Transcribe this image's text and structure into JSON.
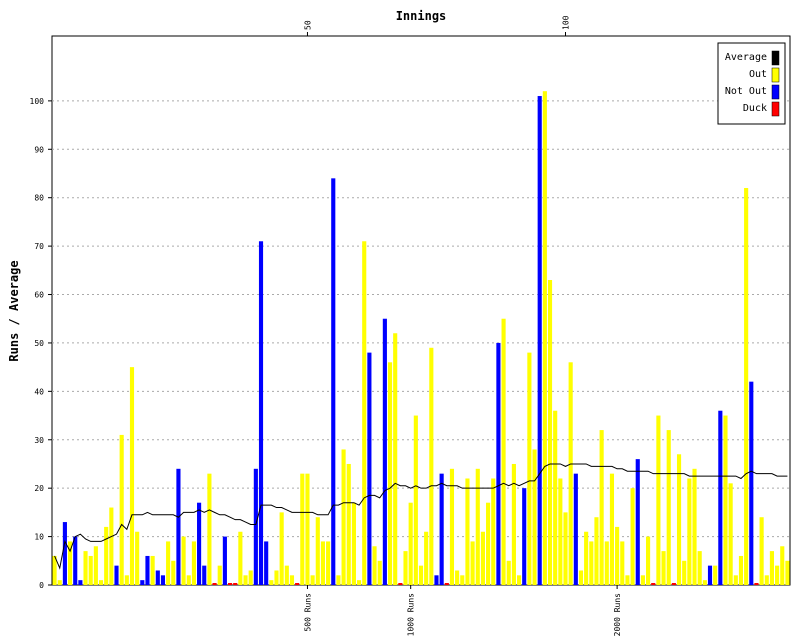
{
  "chart_data": {
    "type": "bar",
    "x_label": "Innings",
    "y_label": "Runs / Average",
    "x": [
      1,
      2,
      3,
      4,
      5,
      6,
      7,
      8,
      9,
      10,
      11,
      12,
      13,
      14,
      15,
      16,
      17,
      18,
      19,
      20,
      21,
      22,
      23,
      24,
      25,
      26,
      27,
      28,
      29,
      30,
      31,
      32,
      33,
      34,
      35,
      36,
      37,
      38,
      39,
      40,
      41,
      42,
      43,
      44,
      45,
      46,
      47,
      48,
      49,
      50,
      51,
      52,
      53,
      54,
      55,
      56,
      57,
      58,
      59,
      60,
      61,
      62,
      63,
      64,
      65,
      66,
      67,
      68,
      69,
      70,
      71,
      72,
      73,
      74,
      75,
      76,
      77,
      78,
      79,
      80,
      81,
      82,
      83,
      84,
      85,
      86,
      87,
      88,
      89,
      90,
      91,
      92,
      93,
      94,
      95,
      96,
      97,
      98,
      99,
      100,
      101,
      102,
      103,
      104,
      105,
      106,
      107,
      108,
      109,
      110,
      111,
      112,
      113,
      114,
      115,
      116,
      117,
      118,
      119,
      120,
      121,
      122,
      123,
      124,
      125,
      126,
      127,
      128,
      129,
      130,
      131,
      132,
      133,
      134,
      135,
      136,
      137,
      138,
      139,
      140,
      141,
      142,
      143
    ],
    "xlim": [
      0.5,
      143.5
    ],
    "xticks": [
      50,
      100
    ],
    "x2ticks": [
      {
        "value": 50,
        "label": "500 Runs"
      },
      {
        "value": 70,
        "label": "1000 Runs"
      },
      {
        "value": 110,
        "label": "2000 Runs"
      }
    ],
    "ylim": [
      0,
      113.4
    ],
    "yticks": [
      0,
      10,
      20,
      30,
      40,
      50,
      60,
      70,
      80,
      90,
      100
    ],
    "grid": true,
    "legend": "top-right",
    "series": [
      {
        "name": "Average",
        "color": "#000000",
        "type": "line",
        "values": [
          6,
          3.5,
          9,
          7,
          10,
          10.5,
          9.5,
          9,
          9,
          9,
          9.5,
          10,
          10.5,
          12.5,
          11.5,
          14.5,
          14.5,
          14.5,
          15,
          14.5,
          14.5,
          14.5,
          14.5,
          14.5,
          14,
          15,
          15,
          15,
          15.5,
          15,
          15.5,
          15,
          14.5,
          14.5,
          14,
          13.5,
          13.5,
          13,
          12.5,
          12.5,
          16.5,
          16.5,
          16.5,
          16,
          16,
          15.5,
          15,
          15,
          15,
          15,
          15,
          14.5,
          14.5,
          14.5,
          16.5,
          16.5,
          17,
          17,
          17,
          16.5,
          18,
          18.5,
          18.5,
          18,
          19.5,
          20,
          21,
          20.5,
          20.5,
          20,
          20.5,
          20,
          20,
          20.5,
          20.5,
          21,
          20.5,
          20.5,
          20.5,
          20,
          20,
          20,
          20,
          20,
          20,
          20,
          20.5,
          21,
          20.5,
          21,
          20.5,
          21,
          21.5,
          21.5,
          23,
          24.5,
          25,
          25,
          25,
          24.5,
          25,
          25,
          25,
          25,
          24.5,
          24.5,
          24.5,
          24.5,
          24.5,
          24,
          24,
          23.5,
          23.5,
          23.5,
          23.5,
          23.5,
          23,
          23,
          23,
          23,
          23,
          23,
          23,
          22.5,
          22.5,
          22.5,
          22.5,
          22.5,
          22.5,
          22.5,
          22.5,
          22.5,
          22.5,
          22,
          23,
          23.5,
          23,
          23,
          23,
          23,
          22.5,
          22.5,
          22.5
        ]
      },
      {
        "name": "Out",
        "color": "#ffff00",
        "values": [
          6,
          1,
          null,
          9,
          null,
          null,
          7,
          6,
          8,
          1,
          12,
          16,
          null,
          31,
          2,
          45,
          11,
          null,
          null,
          6,
          null,
          null,
          9,
          5,
          null,
          10,
          2,
          9,
          null,
          null,
          23,
          null,
          4,
          null,
          null,
          null,
          11,
          2,
          3,
          null,
          null,
          null,
          1,
          3,
          15,
          4,
          2,
          null,
          23,
          23,
          2,
          14,
          9,
          9,
          null,
          2,
          28,
          25,
          17,
          1,
          71,
          null,
          8,
          5,
          null,
          46,
          52,
          null,
          7,
          17,
          35,
          4,
          11,
          49,
          null,
          null,
          null,
          24,
          3,
          2,
          22,
          9,
          24,
          11,
          17,
          22,
          null,
          55,
          5,
          25,
          2,
          null,
          48,
          28,
          null,
          102,
          63,
          36,
          22,
          15,
          46,
          null,
          3,
          11,
          9,
          14,
          32,
          9,
          23,
          12,
          9,
          2,
          20,
          null,
          2,
          10,
          null,
          35,
          7,
          32,
          null,
          27,
          5,
          22,
          24,
          7,
          1,
          null,
          4,
          null,
          35,
          21,
          2,
          6,
          82,
          null,
          null,
          14,
          2,
          7,
          4,
          8,
          5
        ]
      },
      {
        "name": "Not Out",
        "color": "#0000ff",
        "values": [
          null,
          null,
          13,
          null,
          10,
          1,
          null,
          null,
          null,
          null,
          null,
          null,
          4,
          null,
          null,
          null,
          null,
          1,
          6,
          null,
          3,
          2,
          null,
          null,
          24,
          null,
          null,
          null,
          17,
          4,
          null,
          null,
          null,
          10,
          null,
          null,
          null,
          null,
          null,
          24,
          71,
          9,
          null,
          null,
          null,
          null,
          null,
          null,
          null,
          null,
          null,
          null,
          null,
          null,
          84,
          null,
          null,
          null,
          null,
          null,
          null,
          48,
          null,
          null,
          55,
          null,
          null,
          null,
          null,
          null,
          null,
          null,
          null,
          null,
          2,
          23,
          null,
          null,
          null,
          null,
          null,
          null,
          null,
          null,
          null,
          null,
          50,
          null,
          null,
          null,
          null,
          20,
          null,
          null,
          101,
          null,
          null,
          null,
          null,
          null,
          null,
          23,
          null,
          null,
          null,
          null,
          null,
          null,
          null,
          null,
          null,
          null,
          null,
          26,
          null,
          null,
          null,
          null,
          null,
          null,
          null,
          null,
          null,
          null,
          null,
          null,
          null,
          4,
          null,
          36,
          null,
          null,
          null,
          null,
          null,
          42,
          null,
          null,
          null,
          null,
          null,
          null,
          null
        ]
      },
      {
        "name": "Duck",
        "color": "#ff0000",
        "values": [
          null,
          null,
          null,
          null,
          null,
          null,
          null,
          null,
          null,
          null,
          null,
          null,
          null,
          null,
          null,
          null,
          null,
          null,
          null,
          null,
          null,
          null,
          null,
          null,
          null,
          null,
          null,
          null,
          null,
          null,
          null,
          0,
          null,
          null,
          0,
          0,
          null,
          null,
          null,
          null,
          null,
          null,
          null,
          null,
          null,
          null,
          null,
          0,
          null,
          null,
          null,
          null,
          null,
          null,
          null,
          null,
          null,
          null,
          null,
          null,
          null,
          null,
          null,
          null,
          null,
          null,
          null,
          0,
          null,
          null,
          null,
          null,
          null,
          null,
          null,
          null,
          0,
          null,
          null,
          null,
          null,
          null,
          null,
          null,
          null,
          null,
          null,
          null,
          null,
          null,
          null,
          null,
          null,
          null,
          null,
          null,
          null,
          null,
          null,
          null,
          null,
          null,
          null,
          null,
          null,
          null,
          null,
          null,
          null,
          null,
          null,
          null,
          null,
          null,
          null,
          null,
          0,
          null,
          null,
          null,
          0,
          null,
          null,
          null,
          null,
          null,
          null,
          null,
          null,
          null,
          null,
          null,
          null,
          null,
          null,
          null,
          0,
          null,
          null,
          null,
          null,
          null,
          null
        ]
      }
    ]
  }
}
